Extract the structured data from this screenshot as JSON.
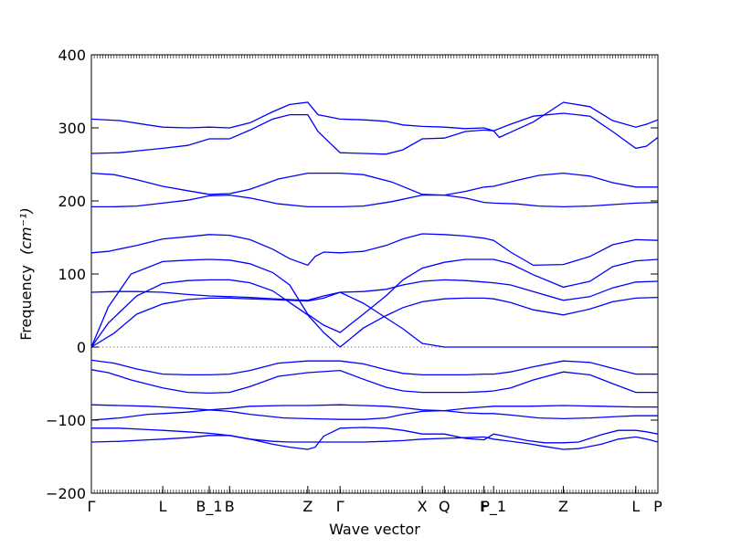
{
  "chart_data": {
    "type": "line",
    "xlabel": "Wave vector",
    "ylabel": "Frequency",
    "ylabel_unit": "(cm⁻¹)",
    "ylim": [
      -200,
      400
    ],
    "xlim": [
      0,
      100
    ],
    "yticks": [
      -200,
      -100,
      0,
      100,
      200,
      300,
      400
    ],
    "zero_line": true,
    "line_color": "#0000ff",
    "xticks": [
      {
        "label": "Γ",
        "x": 0
      },
      {
        "label": "L",
        "x": 12.6
      },
      {
        "label": "B_1",
        "x": 20.8
      },
      {
        "label": "B",
        "x": 24.4
      },
      {
        "label": "Z",
        "x": 38.2
      },
      {
        "label": "Γ",
        "x": 43.9
      },
      {
        "label": "X",
        "x": 58.4
      },
      {
        "label": "Q",
        "x": 62.3
      },
      {
        "label": "F",
        "x": 69.3
      },
      {
        "label": "P_1",
        "x": 71.0
      },
      {
        "label": "Z",
        "x": 83.3
      },
      {
        "label": "L",
        "x": 96.1
      },
      {
        "label": "P",
        "x": 100
      }
    ],
    "series": [
      {
        "x": [
          0,
          5,
          10,
          12.6,
          17,
          20.8,
          24.4,
          28,
          32,
          35,
          38.2,
          39.5,
          41,
          43.9,
          48,
          52,
          55,
          58.4,
          62.3,
          66,
          69.3,
          71,
          73,
          77,
          80,
          83.3,
          86,
          90,
          93,
          96.1,
          98,
          100
        ],
        "y": [
          -130,
          -129,
          -127,
          -126,
          -124,
          -121,
          -121,
          -126,
          -133,
          -137,
          -140,
          -137,
          -122,
          -111,
          -110,
          -111,
          -114,
          -119,
          -119,
          -125,
          -127,
          -119,
          -122,
          -128,
          -131,
          -131,
          -130,
          -120,
          -114,
          -114,
          -116,
          -119
        ]
      },
      {
        "x": [
          0,
          5,
          10,
          12.6,
          17,
          20.8,
          24.4,
          28,
          32,
          35,
          38.2,
          43.9,
          48,
          52,
          55,
          58.4,
          62.3,
          66,
          69.3,
          71,
          73,
          77,
          80,
          83.3,
          86,
          90,
          93,
          96.1,
          98,
          100
        ],
        "y": [
          -111,
          -111,
          -113,
          -114,
          -116,
          -118,
          -121,
          -126,
          -129,
          -130,
          -130,
          -130,
          -130,
          -129,
          -128,
          -126,
          -125,
          -124,
          -123,
          -126,
          -128,
          -132,
          -136,
          -140,
          -139,
          -133,
          -126,
          -123,
          -126,
          -130
        ]
      },
      {
        "x": [
          0,
          5,
          10,
          12.6,
          17,
          20.8,
          24.4,
          28,
          34,
          38.2,
          43.9,
          48,
          52,
          55,
          58.4,
          62.3,
          66,
          69.3,
          71,
          74,
          79,
          83.3,
          88,
          93,
          96.1,
          100
        ],
        "y": [
          -100,
          -97,
          -92,
          -91,
          -89,
          -86,
          -88,
          -92,
          -97,
          -98,
          -99,
          -99,
          -97,
          -92,
          -88,
          -87,
          -90,
          -91,
          -91,
          -93,
          -97,
          -98,
          -97,
          -95,
          -94,
          -94
        ]
      },
      {
        "x": [
          0,
          5,
          10,
          12.6,
          17,
          20.8,
          24.4,
          28,
          34,
          38.2,
          43.9,
          48,
          52,
          55,
          58.4,
          62.3,
          66,
          69.3,
          71,
          77,
          83.3,
          90,
          96.1,
          100
        ],
        "y": [
          -79,
          -80,
          -81,
          -82,
          -84,
          -86,
          -84,
          -81,
          -80,
          -80,
          -79,
          -80,
          -81,
          -83,
          -86,
          -87,
          -84,
          -82,
          -81,
          -81,
          -80,
          -81,
          -82,
          -82
        ]
      },
      {
        "x": [
          0,
          3,
          7,
          12.6,
          17,
          20.8,
          24.4,
          28,
          33,
          38.2,
          43.9,
          48,
          52,
          55,
          58.4,
          62.3,
          66,
          69.3,
          71,
          74,
          78,
          83.3,
          88,
          92,
          96.1,
          100
        ],
        "y": [
          -31,
          -35,
          -45,
          -56,
          -62,
          -63,
          -62,
          -54,
          -40,
          -35,
          -32,
          -44,
          -55,
          -60,
          -62,
          -62,
          -62,
          -61,
          -60,
          -56,
          -45,
          -34,
          -38,
          -50,
          -62,
          -62
        ]
      },
      {
        "x": [
          0,
          4,
          8,
          12.6,
          17,
          20.8,
          24.4,
          28,
          33,
          38.2,
          43.9,
          48,
          52,
          55,
          58.4,
          62.3,
          66,
          69.3,
          71,
          74,
          78,
          83.3,
          88,
          92,
          96.1,
          100
        ],
        "y": [
          -18,
          -22,
          -30,
          -37,
          -38,
          -38,
          -37,
          -32,
          -22,
          -19,
          -19,
          -23,
          -31,
          -36,
          -38,
          -38,
          -38,
          -37,
          -37,
          -34,
          -27,
          -19,
          -21,
          -29,
          -37,
          -37
        ]
      },
      {
        "x": [
          0,
          4,
          8,
          12.6,
          17,
          20.8,
          24.4,
          28,
          32,
          35,
          38.2,
          41,
          43.9,
          48,
          52,
          55,
          58.4,
          62.3,
          66,
          69.3,
          71,
          74,
          78,
          83.3,
          88,
          92,
          96.1,
          100
        ],
        "y": [
          0,
          19,
          45,
          59,
          65,
          67,
          67,
          66,
          65,
          64,
          63,
          67,
          75,
          60,
          40,
          25,
          5,
          0,
          0,
          0,
          0,
          0,
          0,
          0,
          0,
          0,
          0,
          0
        ]
      },
      {
        "x": [
          43.9,
          48,
          52,
          55,
          58.4,
          62.3,
          66,
          69.3,
          71,
          74,
          78,
          83.3,
          88,
          92,
          96.1,
          100
        ],
        "y": [
          0,
          26,
          43,
          54,
          62,
          66,
          67,
          67,
          66,
          61,
          51,
          44,
          52,
          62,
          67,
          68
        ]
      },
      {
        "x": [
          0,
          3,
          8,
          12.6,
          17,
          20.8,
          24.4,
          28,
          32,
          35,
          38.2,
          41,
          43.9
        ],
        "y": [
          0,
          33,
          70,
          87,
          91,
          92,
          92,
          88,
          77,
          61,
          44,
          20,
          0
        ]
      },
      {
        "x": [
          0,
          4,
          8,
          12.6,
          17,
          20.8,
          24.4,
          28,
          32,
          35,
          38.2,
          41,
          43.9,
          48,
          52,
          55,
          58.4,
          62.3,
          66,
          69.3,
          71,
          74,
          78,
          83.3,
          88,
          92,
          96.1,
          100
        ],
        "y": [
          75,
          76,
          76,
          75,
          72,
          70,
          69,
          68,
          66,
          65,
          64,
          70,
          75,
          76,
          79,
          85,
          90,
          92,
          91,
          89,
          88,
          85,
          76,
          64,
          69,
          81,
          89,
          90
        ]
      },
      {
        "x": [
          0,
          3,
          7,
          12.6,
          17,
          20.8,
          24.4,
          28,
          32,
          35,
          38.2,
          41,
          43.9,
          48,
          52,
          55,
          58.4,
          62.3,
          66,
          69.3,
          71,
          74,
          78,
          83.3,
          88,
          92,
          96.1,
          100
        ],
        "y": [
          0,
          55,
          100,
          117,
          119,
          120,
          119,
          114,
          102,
          85,
          45,
          30,
          20,
          45,
          70,
          92,
          108,
          116,
          120,
          120,
          120,
          114,
          99,
          82,
          90,
          110,
          118,
          120
        ]
      },
      {
        "x": [
          0,
          3,
          8,
          12.6,
          17,
          20.8,
          24.4,
          28,
          32,
          35,
          38.2,
          39.5,
          41,
          43.9,
          48,
          52,
          55,
          58.4,
          62.3,
          66,
          69.3,
          71,
          74,
          78,
          83.3,
          88,
          92,
          96.1,
          100
        ],
        "y": [
          129,
          131,
          139,
          148,
          151,
          154,
          153,
          147,
          134,
          121,
          112,
          124,
          130,
          129,
          131,
          139,
          148,
          155,
          154,
          152,
          149,
          146,
          130,
          112,
          113,
          124,
          140,
          147,
          146
        ]
      },
      {
        "x": [
          0,
          4,
          8,
          12.6,
          17,
          20.8,
          24.4,
          28,
          33,
          38.2,
          43.9,
          48,
          53,
          58.4,
          62.3,
          66,
          69.3,
          71,
          75,
          79,
          83.3,
          88,
          92,
          96.1,
          100
        ],
        "y": [
          192,
          192,
          193,
          197,
          201,
          207,
          208,
          204,
          196,
          192,
          192,
          193,
          199,
          208,
          208,
          204,
          198,
          197,
          196,
          193,
          192,
          193,
          195,
          197,
          198
        ]
      },
      {
        "x": [
          0,
          4,
          8,
          12.6,
          17,
          20.8,
          24.4,
          28,
          33,
          38.2,
          43.9,
          48,
          53,
          58.4,
          62.3,
          66,
          69.3,
          71,
          75,
          79,
          83.3,
          88,
          92,
          96.1,
          100
        ],
        "y": [
          238,
          236,
          229,
          220,
          214,
          209,
          210,
          216,
          230,
          238,
          238,
          236,
          226,
          209,
          208,
          213,
          219,
          220,
          228,
          235,
          238,
          234,
          225,
          219,
          219
        ]
      },
      {
        "x": [
          0,
          5,
          10,
          12.6,
          17,
          20.8,
          24.4,
          28,
          32,
          35,
          38.2,
          40,
          43.9,
          48,
          52,
          55,
          58.4,
          62.3,
          66,
          69.3,
          71,
          74,
          78,
          83.3,
          88,
          92,
          96.1,
          98,
          100
        ],
        "y": [
          265,
          266,
          270,
          272,
          276,
          285,
          285,
          297,
          312,
          318,
          318,
          295,
          266,
          265,
          264,
          270,
          285,
          286,
          295,
          297,
          296,
          305,
          316,
          320,
          316,
          295,
          272,
          275,
          287
        ]
      },
      {
        "x": [
          0,
          5,
          10,
          12.6,
          17,
          20.8,
          24.4,
          28,
          32,
          35,
          38.2,
          40,
          43.9,
          48,
          52,
          55,
          58.4,
          62.3,
          66,
          69.3,
          71,
          72,
          74,
          78,
          83.3,
          88,
          92,
          96.1,
          98,
          100
        ],
        "y": [
          312,
          310,
          304,
          301,
          300,
          301,
          300,
          307,
          322,
          332,
          335,
          318,
          312,
          311,
          309,
          304,
          302,
          301,
          299,
          300,
          296,
          287,
          294,
          308,
          335,
          329,
          310,
          301,
          305,
          311
        ]
      }
    ]
  }
}
